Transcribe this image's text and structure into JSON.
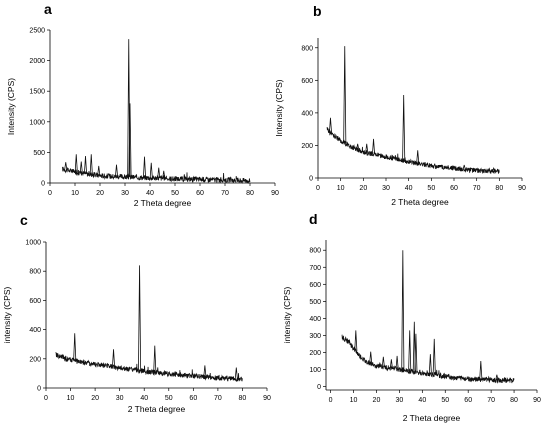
{
  "chart_data": [
    {
      "panel": "a",
      "type": "line",
      "xlabel": "2 Theta degree",
      "ylabel": "Intensity (CPS)",
      "xlim": [
        0,
        90
      ],
      "ylim": [
        0,
        2500
      ],
      "xticks": [
        0,
        10,
        20,
        30,
        40,
        50,
        60,
        70,
        80,
        90
      ],
      "yticks": [
        0,
        500,
        1000,
        1500,
        2000,
        2500
      ],
      "grid": false,
      "x_range": [
        5,
        80
      ],
      "baseline": [
        [
          5,
          230
        ],
        [
          10,
          180
        ],
        [
          15,
          150
        ],
        [
          20,
          120
        ],
        [
          30,
          100
        ],
        [
          40,
          85
        ],
        [
          50,
          70
        ],
        [
          60,
          60
        ],
        [
          70,
          50
        ],
        [
          80,
          40
        ]
      ],
      "peaks": [
        {
          "x": 6.3,
          "y": 340
        },
        {
          "x": 10.5,
          "y": 470
        },
        {
          "x": 12.5,
          "y": 350
        },
        {
          "x": 14.2,
          "y": 440
        },
        {
          "x": 16.5,
          "y": 470
        },
        {
          "x": 19.5,
          "y": 280
        },
        {
          "x": 26.6,
          "y": 300
        },
        {
          "x": 31.5,
          "y": 2350
        },
        {
          "x": 32.0,
          "y": 1300
        },
        {
          "x": 37.8,
          "y": 430
        },
        {
          "x": 40.5,
          "y": 330
        },
        {
          "x": 43.5,
          "y": 250
        },
        {
          "x": 45.5,
          "y": 200
        }
      ]
    },
    {
      "panel": "b",
      "type": "line",
      "xlabel": "2 Theta degree",
      "ylabel": "Intensity (CPS)",
      "xlim": [
        0,
        90
      ],
      "ylim": [
        0,
        860
      ],
      "xticks": [
        0,
        10,
        20,
        30,
        40,
        50,
        60,
        70,
        80,
        90
      ],
      "yticks": [
        0,
        200,
        400,
        600,
        800
      ],
      "grid": false,
      "x_range": [
        4,
        80
      ],
      "baseline": [
        [
          4,
          300
        ],
        [
          6,
          270
        ],
        [
          10,
          230
        ],
        [
          15,
          190
        ],
        [
          20,
          160
        ],
        [
          30,
          130
        ],
        [
          40,
          100
        ],
        [
          50,
          75
        ],
        [
          60,
          60
        ],
        [
          70,
          45
        ],
        [
          80,
          40
        ]
      ],
      "peaks": [
        {
          "x": 5.5,
          "y": 370
        },
        {
          "x": 11.8,
          "y": 810
        },
        {
          "x": 17.5,
          "y": 210
        },
        {
          "x": 21.5,
          "y": 210
        },
        {
          "x": 24.5,
          "y": 240
        },
        {
          "x": 37.8,
          "y": 510
        },
        {
          "x": 44.0,
          "y": 170
        },
        {
          "x": 64.5,
          "y": 80
        },
        {
          "x": 77.5,
          "y": 60
        }
      ]
    },
    {
      "panel": "c",
      "type": "line",
      "xlabel": "2 Theta degree",
      "ylabel": "intensity (CPS)",
      "xlim": [
        0,
        90
      ],
      "ylim": [
        0,
        1000
      ],
      "xticks": [
        0,
        10,
        20,
        30,
        40,
        50,
        60,
        70,
        80,
        90
      ],
      "yticks": [
        0,
        200,
        400,
        600,
        800,
        1000
      ],
      "grid": false,
      "x_range": [
        4,
        80
      ],
      "baseline": [
        [
          4,
          230
        ],
        [
          8,
          200
        ],
        [
          15,
          175
        ],
        [
          25,
          150
        ],
        [
          35,
          125
        ],
        [
          45,
          105
        ],
        [
          55,
          90
        ],
        [
          65,
          75
        ],
        [
          75,
          65
        ],
        [
          80,
          60
        ]
      ],
      "peaks": [
        {
          "x": 11.7,
          "y": 375
        },
        {
          "x": 27.5,
          "y": 265
        },
        {
          "x": 38.1,
          "y": 840
        },
        {
          "x": 44.3,
          "y": 290
        },
        {
          "x": 64.7,
          "y": 155
        },
        {
          "x": 77.5,
          "y": 140
        }
      ]
    },
    {
      "panel": "d",
      "type": "line",
      "xlabel": "2 Theta degree",
      "ylabel": "intensity (CPS)",
      "xlim": [
        -2,
        90
      ],
      "ylim": [
        -20,
        860
      ],
      "xticks": [
        0,
        10,
        20,
        30,
        40,
        50,
        60,
        70,
        80,
        90
      ],
      "yticks": [
        0,
        100,
        200,
        300,
        400,
        500,
        600,
        700,
        800
      ],
      "grid": false,
      "x_range": [
        5,
        80
      ],
      "baseline": [
        [
          5,
          290
        ],
        [
          8,
          260
        ],
        [
          12,
          190
        ],
        [
          15,
          150
        ],
        [
          20,
          120
        ],
        [
          30,
          100
        ],
        [
          40,
          80
        ],
        [
          50,
          60
        ],
        [
          60,
          45
        ],
        [
          70,
          40
        ],
        [
          80,
          35
        ]
      ],
      "peaks": [
        {
          "x": 11.0,
          "y": 330
        },
        {
          "x": 17.5,
          "y": 205
        },
        {
          "x": 23.0,
          "y": 175
        },
        {
          "x": 26.5,
          "y": 160
        },
        {
          "x": 29.0,
          "y": 180
        },
        {
          "x": 31.5,
          "y": 800
        },
        {
          "x": 34.5,
          "y": 330
        },
        {
          "x": 36.5,
          "y": 380
        },
        {
          "x": 37.2,
          "y": 310
        },
        {
          "x": 43.5,
          "y": 190
        },
        {
          "x": 45.2,
          "y": 280
        },
        {
          "x": 65.5,
          "y": 150
        },
        {
          "x": 72.5,
          "y": 70
        }
      ]
    }
  ]
}
